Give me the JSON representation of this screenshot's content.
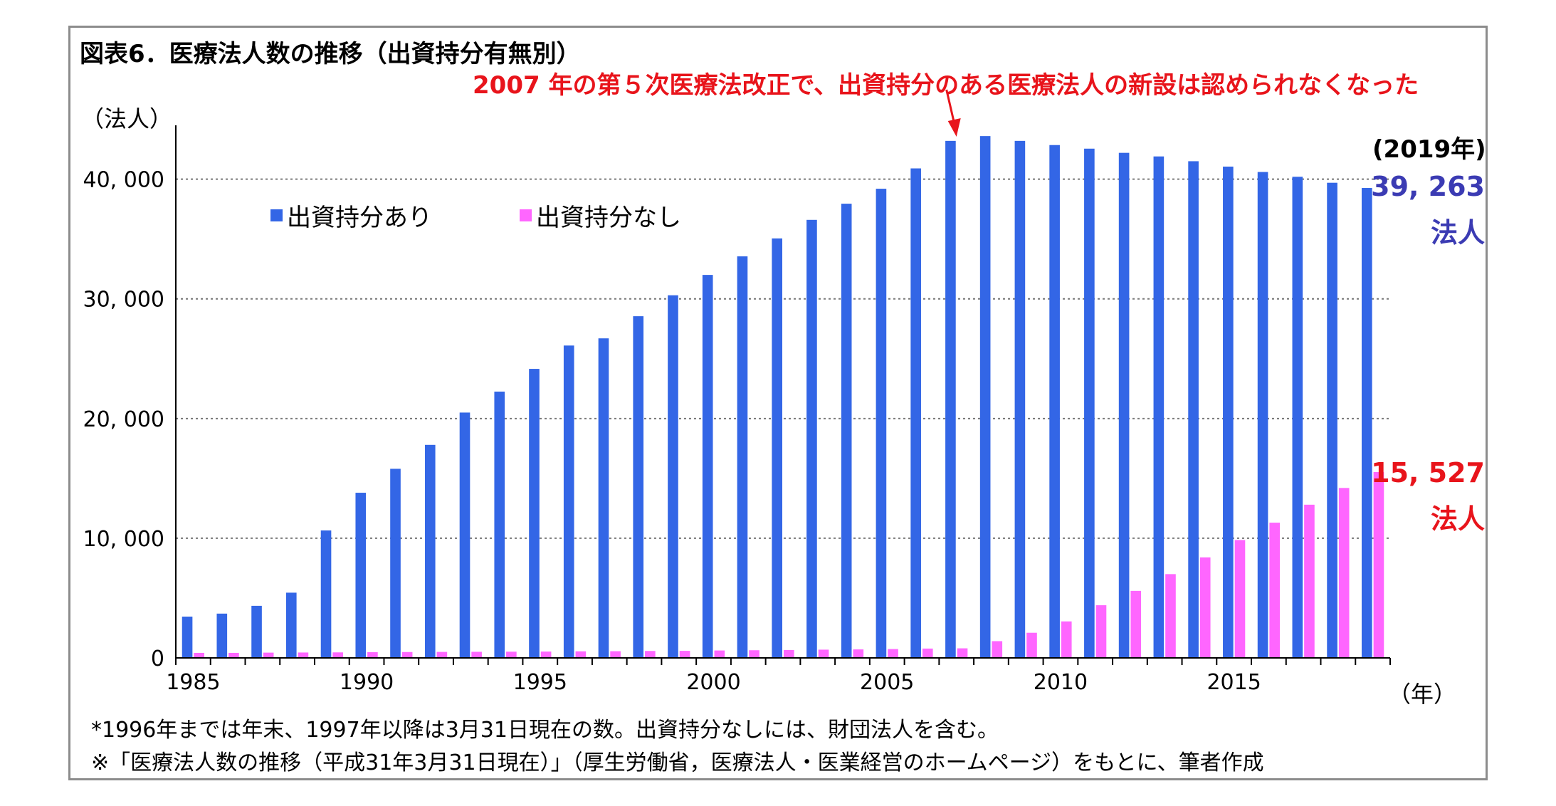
{
  "title": "図表6．医療法人数の推移（出資持分有無別）",
  "annotation": "2007 年の第５次医療法改正で、出資持分のある医療法人の新設は認められなくなった",
  "y_unit": "（法人）",
  "x_unit": "（年）",
  "year_label": "(2019年)",
  "callouts": {
    "blue_value": "39, 263",
    "blue_unit": "法人",
    "pink_value": "15, 527",
    "pink_unit": "法人"
  },
  "notes": [
    "*1996年までは年末、1997年以降は3月31日現在の数。出資持分なしには、財団法人を含む。",
    "※「医療法人数の推移（平成31年3月31日現在）」（厚生労働省，医療法人・医業経営のホームページ）をもとに、筆者作成"
  ],
  "colors": {
    "blue": "#3366e6",
    "pink": "#ff66ff",
    "red": "#e8141b",
    "callout_blue": "#3b3bb3"
  },
  "chart_data": {
    "type": "bar",
    "x": [
      1985,
      1986,
      1987,
      1988,
      1989,
      1990,
      1991,
      1992,
      1993,
      1994,
      1995,
      1996,
      1997,
      1998,
      1999,
      2000,
      2001,
      2002,
      2003,
      2004,
      2005,
      2006,
      2007,
      2008,
      2009,
      2010,
      2011,
      2012,
      2013,
      2014,
      2015,
      2016,
      2017,
      2018,
      2019
    ],
    "x_tick_labels": [
      "1985",
      "1990",
      "1995",
      "2000",
      "2005",
      "2010",
      "2015"
    ],
    "x_tick_years": [
      1985,
      1990,
      1995,
      2000,
      2005,
      2010,
      2015
    ],
    "series": [
      {
        "name": "出資持分あり",
        "color": "#3366e6",
        "values": [
          3450,
          3700,
          4350,
          5450,
          10650,
          13800,
          15800,
          17800,
          20500,
          22250,
          24150,
          26100,
          26700,
          28550,
          30300,
          32000,
          33550,
          35050,
          36600,
          37950,
          39200,
          40900,
          43200,
          43600,
          43200,
          42850,
          42550,
          42200,
          41900,
          41500,
          41050,
          40600,
          40200,
          39700,
          39263
        ]
      },
      {
        "name": "出資持分なし",
        "color": "#ff66ff",
        "values": [
          420,
          420,
          440,
          450,
          460,
          480,
          490,
          500,
          510,
          520,
          530,
          550,
          560,
          580,
          590,
          620,
          640,
          660,
          690,
          710,
          740,
          780,
          800,
          1400,
          2100,
          3050,
          4400,
          5600,
          7000,
          8400,
          9850,
          11300,
          12800,
          14200,
          15527
        ]
      }
    ],
    "y_ticks": [
      0,
      10000,
      20000,
      30000,
      40000
    ],
    "y_tick_labels": [
      "0",
      "10, 000",
      "20, 000",
      "30, 000",
      "40, 000"
    ],
    "ylim": [
      0,
      44500
    ],
    "grid": "horizontal dotted",
    "legend": "top-left"
  }
}
